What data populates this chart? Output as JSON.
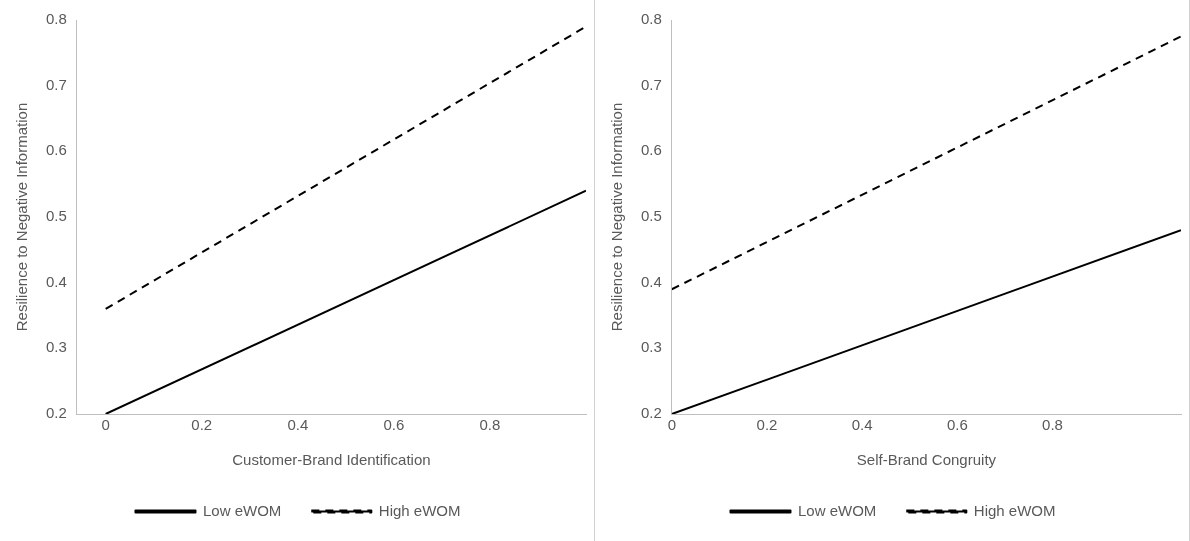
{
  "chart_data": [
    {
      "type": "line",
      "xlabel": "Customer-Brand Identification",
      "ylabel": "Resilience to Negative Information",
      "xlim": [
        -0.06,
        1.0
      ],
      "xticks": [
        0,
        0.2,
        0.4,
        0.6,
        0.8
      ],
      "ylim": [
        0.2,
        0.8
      ],
      "yticks": [
        0.2,
        0.3,
        0.4,
        0.5,
        0.6,
        0.7,
        0.8
      ],
      "grid": false,
      "legend": "bottom",
      "marker": "none",
      "series": [
        {
          "name": "Low eWOM",
          "color": "#000000",
          "x": [
            0,
            1.0
          ],
          "values": [
            0.2,
            0.54
          ],
          "line_style": "solid"
        },
        {
          "name": "High eWOM",
          "color": "#000000",
          "x": [
            0,
            1.0
          ],
          "values": [
            0.36,
            0.79
          ],
          "line_style": "dashed"
        }
      ]
    },
    {
      "type": "line",
      "xlabel": "Self-Brand Congruity",
      "ylabel": "Resilience to Negative Information",
      "xlim": [
        0,
        1.07
      ],
      "xticks": [
        0,
        0.2,
        0.4,
        0.6,
        0.8
      ],
      "ylim": [
        0.2,
        0.8
      ],
      "yticks": [
        0.2,
        0.3,
        0.4,
        0.5,
        0.6,
        0.7,
        0.8
      ],
      "grid": false,
      "legend": "bottom",
      "marker": "none",
      "series": [
        {
          "name": "Low eWOM",
          "color": "#000000",
          "x": [
            0,
            1.07
          ],
          "values": [
            0.2,
            0.48
          ],
          "line_style": "solid"
        },
        {
          "name": "High eWOM",
          "color": "#000000",
          "x": [
            0,
            1.07
          ],
          "values": [
            0.39,
            0.775
          ],
          "line_style": "dashed"
        }
      ]
    }
  ]
}
